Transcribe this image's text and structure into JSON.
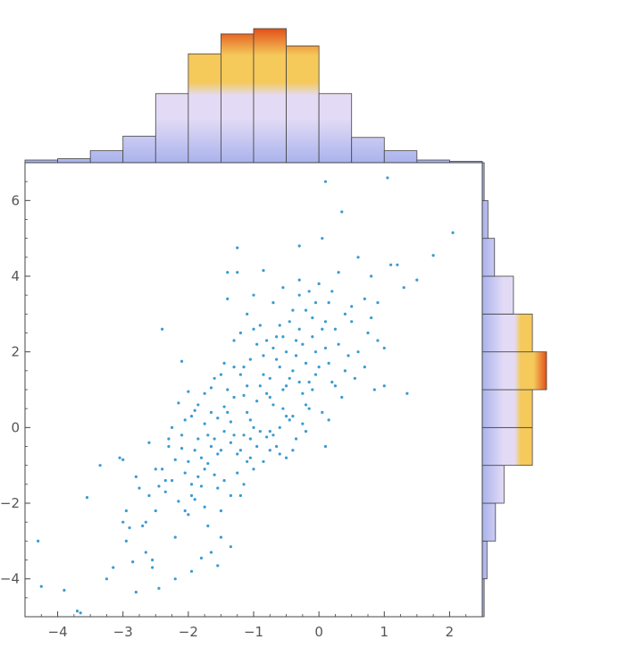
{
  "chart_data": {
    "type": "scatter",
    "title": "",
    "xlabel": "",
    "ylabel": "",
    "xlim": [
      -4.5,
      2.5
    ],
    "ylim": [
      -5,
      7
    ],
    "grid": false,
    "x_ticks": [
      -4,
      -3,
      -2,
      -1,
      0,
      1,
      2
    ],
    "y_ticks": [
      -4,
      -2,
      0,
      2,
      4,
      6
    ],
    "x_tick_labels": [
      "−4",
      "−3",
      "−2",
      "−1",
      "0",
      "1",
      "2"
    ],
    "y_tick_labels": [
      "−4",
      "−2",
      "0",
      "2",
      "4",
      "6"
    ],
    "colors": {
      "points": "#3a9bd1",
      "hist_low": "#a9b3ec",
      "hist_mid": "#e3dbf6",
      "hist_high": "#f5c95a",
      "hist_peak": "#e2501a",
      "frame": "#444444"
    },
    "x_histogram": {
      "bin_edges": [
        -4.5,
        -4,
        -3.5,
        -3,
        -2.5,
        -2,
        -1.5,
        -1,
        -0.5,
        0,
        0.5,
        1,
        1.5,
        2,
        2.5
      ],
      "counts": [
        2,
        3,
        9,
        20,
        52,
        82,
        97,
        101,
        88,
        52,
        19,
        9,
        2,
        1
      ]
    },
    "y_histogram": {
      "bin_edges": [
        -5,
        -4,
        -3,
        -2,
        -1,
        0,
        1,
        2,
        3,
        4,
        5,
        6,
        7
      ],
      "counts": [
        2,
        5,
        14,
        23,
        53,
        53,
        68,
        53,
        33,
        13,
        6,
        2
      ]
    },
    "points": [
      [
        -4.3,
        -3
      ],
      [
        -4.25,
        -4.2
      ],
      [
        -3.9,
        -4.3
      ],
      [
        -3.65,
        -4.9
      ],
      [
        -3.7,
        -4.85
      ],
      [
        -3.55,
        -1.85
      ],
      [
        -3.35,
        -1
      ],
      [
        -3.25,
        -4
      ],
      [
        -3.15,
        -3.7
      ],
      [
        -3.05,
        -0.8
      ],
      [
        -3,
        -0.85
      ],
      [
        -3,
        -2.5
      ],
      [
        -2.95,
        -2.2
      ],
      [
        -2.95,
        -3
      ],
      [
        -2.9,
        -2.65
      ],
      [
        -2.85,
        -3.55
      ],
      [
        -2.8,
        -4.35
      ],
      [
        -2.75,
        -1.6
      ],
      [
        -2.7,
        -2.6
      ],
      [
        -2.65,
        -2.5
      ],
      [
        -2.65,
        -3.3
      ],
      [
        -2.6,
        -1.8
      ],
      [
        -2.55,
        -3.5
      ],
      [
        -2.55,
        -3.7
      ],
      [
        -2.5,
        -1.1
      ],
      [
        -2.5,
        -2.2
      ],
      [
        -2.45,
        -4.25
      ],
      [
        -2.4,
        2.6
      ],
      [
        -2.4,
        -1.1
      ],
      [
        -2.35,
        -1.7
      ],
      [
        -2.35,
        -1.4
      ],
      [
        -2.3,
        -0.5
      ],
      [
        -2.25,
        -1.4
      ],
      [
        -2.2,
        -2.9
      ],
      [
        -2.2,
        -4
      ],
      [
        -2.15,
        -1.95
      ],
      [
        -2.1,
        1.75
      ],
      [
        -2.1,
        -0.2
      ],
      [
        -2.05,
        -1.2
      ],
      [
        -2.05,
        -2.2
      ],
      [
        -2,
        -0.9
      ],
      [
        -2,
        -2.3
      ],
      [
        -1.95,
        -1.5
      ],
      [
        -1.95,
        -1.8
      ],
      [
        -1.95,
        -3.8
      ],
      [
        -1.9,
        0.45
      ],
      [
        -1.9,
        -0.6
      ],
      [
        -1.85,
        -1.3
      ],
      [
        -1.8,
        -3.45
      ],
      [
        -1.8,
        -0.8
      ],
      [
        -1.75,
        0.1
      ],
      [
        -1.75,
        -1.1
      ],
      [
        -1.7,
        -2.6
      ],
      [
        -1.7,
        -0.2
      ],
      [
        -1.65,
        -3.3
      ],
      [
        -1.65,
        -0.5
      ],
      [
        -1.6,
        -0.3
      ],
      [
        -1.6,
        1.3
      ],
      [
        -1.55,
        -1.6
      ],
      [
        -1.55,
        -3.65
      ],
      [
        -1.5,
        -0.6
      ],
      [
        -1.5,
        1.4
      ],
      [
        -1.5,
        -2.9
      ],
      [
        -1.45,
        0.55
      ],
      [
        -1.45,
        -1.4
      ],
      [
        -1.4,
        3.4
      ],
      [
        -1.4,
        4.1
      ],
      [
        -1.4,
        0.4
      ],
      [
        -1.35,
        -1.8
      ],
      [
        -1.35,
        -3.15
      ],
      [
        -1.3,
        2.3
      ],
      [
        -1.3,
        1.6
      ],
      [
        -1.3,
        -0.2
      ],
      [
        -1.25,
        4.75
      ],
      [
        -1.25,
        4.1
      ],
      [
        -1.2,
        2.5
      ],
      [
        -1.2,
        -0.6
      ],
      [
        -1.15,
        0.85
      ],
      [
        -1.15,
        -1.5
      ],
      [
        -1.1,
        1.1
      ],
      [
        -1.1,
        3.0
      ],
      [
        -1.05,
        0.2
      ],
      [
        -1.05,
        -0.8
      ],
      [
        -1,
        -1.1
      ],
      [
        -1,
        2.6
      ],
      [
        -0.95,
        2.2
      ],
      [
        -0.9,
        2.7
      ],
      [
        -0.85,
        4.15
      ],
      [
        -0.85,
        1.9
      ],
      [
        -0.8,
        -0.25
      ],
      [
        -0.75,
        0.8
      ],
      [
        -0.75,
        1.3
      ],
      [
        -0.7,
        2.1
      ],
      [
        -0.7,
        3.3
      ],
      [
        -0.65,
        -0.5
      ],
      [
        -0.6,
        0.0
      ],
      [
        -0.6,
        1.6
      ],
      [
        -0.55,
        3.7
      ],
      [
        -0.55,
        2.4
      ],
      [
        -0.5,
        1.1
      ],
      [
        -0.5,
        -0.8
      ],
      [
        -0.45,
        2.8
      ],
      [
        -0.4,
        3.1
      ],
      [
        -0.4,
        0.3
      ],
      [
        -0.35,
        1.9
      ],
      [
        -0.3,
        4.8
      ],
      [
        -0.3,
        3.5
      ],
      [
        -0.25,
        2.2
      ],
      [
        -0.2,
        -0.1
      ],
      [
        -0.2,
        1.7
      ],
      [
        -0.15,
        3.6
      ],
      [
        -0.1,
        2.9
      ],
      [
        -0.05,
        1.4
      ],
      [
        0,
        3.8
      ],
      [
        0.05,
        5.0
      ],
      [
        0.1,
        2.1
      ],
      [
        0.1,
        -0.5
      ],
      [
        0.15,
        3.3
      ],
      [
        0.2,
        1.2
      ],
      [
        0.25,
        2.6
      ],
      [
        0.3,
        4.1
      ],
      [
        0.35,
        0.8
      ],
      [
        0.35,
        5.7
      ],
      [
        0.4,
        3.0
      ],
      [
        0.45,
        1.9
      ],
      [
        0.5,
        2.8
      ],
      [
        0.55,
        1.3
      ],
      [
        0.6,
        4.5
      ],
      [
        0.7,
        3.4
      ],
      [
        0.75,
        2.5
      ],
      [
        0.8,
        4.0
      ],
      [
        0.85,
        1.0
      ],
      [
        0.9,
        2.3
      ],
      [
        1,
        2.1
      ],
      [
        1,
        1.1
      ],
      [
        1.05,
        6.6
      ],
      [
        1.1,
        4.3
      ],
      [
        1.2,
        4.3
      ],
      [
        1.3,
        3.7
      ],
      [
        1.35,
        0.9
      ],
      [
        1.5,
        3.9
      ],
      [
        1.75,
        4.55
      ],
      [
        2.05,
        5.15
      ],
      [
        0.1,
        6.5
      ],
      [
        -2.8,
        -1.3
      ],
      [
        -2.6,
        -0.4
      ],
      [
        -2.45,
        -1.55
      ],
      [
        -2.3,
        -0.3
      ],
      [
        -2.2,
        -0.85
      ],
      [
        -2.15,
        0.65
      ],
      [
        -2.05,
        0.2
      ],
      [
        -2,
        0.95
      ],
      [
        -1.9,
        -1.9
      ],
      [
        -1.85,
        0.6
      ],
      [
        -1.8,
        -1.55
      ],
      [
        -1.75,
        0.9
      ],
      [
        -1.7,
        -0.95
      ],
      [
        -1.65,
        1.05
      ],
      [
        -1.6,
        -1.25
      ],
      [
        -1.55,
        0.25
      ],
      [
        -1.5,
        -2.2
      ],
      [
        -1.45,
        -0.1
      ],
      [
        -1.4,
        1.0
      ],
      [
        -1.35,
        -0.4
      ],
      [
        -1.3,
        0.8
      ],
      [
        -1.25,
        -1.2
      ],
      [
        -1.2,
        1.4
      ],
      [
        -1.15,
        -0.2
      ],
      [
        -1.1,
        0.4
      ],
      [
        -1.05,
        1.8
      ],
      [
        -1,
        0.0
      ],
      [
        -0.95,
        -0.5
      ],
      [
        -0.9,
        1.1
      ],
      [
        -0.85,
        -0.9
      ],
      [
        -0.8,
        2.3
      ],
      [
        -0.75,
        -0.1
      ],
      [
        -0.7,
        0.6
      ],
      [
        -0.65,
        1.8
      ],
      [
        -0.6,
        -0.7
      ],
      [
        -0.55,
        1.0
      ],
      [
        -0.5,
        2.0
      ],
      [
        -0.45,
        0.2
      ],
      [
        -0.4,
        1.5
      ],
      [
        -0.35,
        -0.3
      ],
      [
        -0.3,
        2.6
      ],
      [
        -0.25,
        0.9
      ],
      [
        -0.2,
        3.1
      ],
      [
        -0.15,
        0.5
      ],
      [
        -0.1,
        2.4
      ],
      [
        -0.05,
        3.3
      ],
      [
        0,
        1.6
      ],
      [
        0.05,
        0.4
      ],
      [
        0.1,
        2.8
      ],
      [
        0.15,
        1.7
      ],
      [
        0.2,
        3.6
      ],
      [
        0.25,
        1.1
      ],
      [
        0.3,
        2.2
      ],
      [
        0.4,
        1.5
      ],
      [
        0.5,
        3.2
      ],
      [
        0.6,
        2.0
      ],
      [
        0.7,
        1.6
      ],
      [
        0.8,
        2.9
      ],
      [
        0.9,
        3.3
      ],
      [
        -0.3,
        3.9
      ],
      [
        -2.25,
        0.0
      ],
      [
        -2.1,
        -0.55
      ],
      [
        -1.95,
        0.3
      ],
      [
        -1.85,
        -0.3
      ],
      [
        -1.75,
        -2.1
      ],
      [
        -1.65,
        0.4
      ],
      [
        -1.55,
        -0.7
      ],
      [
        -1.45,
        1.7
      ],
      [
        -1.35,
        0.15
      ],
      [
        -1.25,
        -0.7
      ],
      [
        -1.15,
        1.6
      ],
      [
        -1.05,
        -0.3
      ],
      [
        -0.95,
        0.7
      ],
      [
        -0.85,
        1.4
      ],
      [
        -0.75,
        -0.6
      ],
      [
        -0.65,
        2.4
      ],
      [
        -0.55,
        0.5
      ],
      [
        -0.45,
        1.3
      ],
      [
        -0.35,
        2.3
      ],
      [
        -0.25,
        0.1
      ],
      [
        -0.15,
        1.2
      ],
      [
        -0.05,
        2.0
      ],
      [
        0.05,
        2.6
      ],
      [
        0.15,
        0.2
      ],
      [
        -1.2,
        -1.8
      ],
      [
        -1.1,
        -0.9
      ],
      [
        -1.0,
        3.5
      ],
      [
        -0.9,
        -0.1
      ],
      [
        -0.8,
        0.9
      ],
      [
        -0.7,
        -0.2
      ],
      [
        -0.6,
        2.7
      ],
      [
        -0.5,
        0.3
      ],
      [
        -0.4,
        -0.6
      ],
      [
        -0.3,
        1.2
      ],
      [
        -0.2,
        0.6
      ],
      [
        -0.1,
        1.0
      ]
    ]
  }
}
